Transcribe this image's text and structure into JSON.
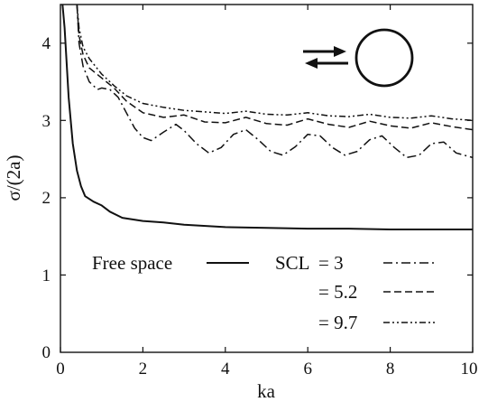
{
  "chart_data": {
    "type": "line",
    "title": "",
    "xlabel": "ka",
    "ylabel": "σ/(2a)",
    "xlim": [
      0,
      10
    ],
    "ylim": [
      0,
      4.5
    ],
    "xticks": [
      "0",
      "2",
      "4",
      "6",
      "8",
      "10"
    ],
    "yticks": [
      "0",
      "1",
      "2",
      "3",
      "4"
    ],
    "grid": false,
    "legend_placement": "bottom",
    "inset_icon": "scattering-cylinder-with-incident-and-reflected-arrows-icon",
    "legend": {
      "free_space": "Free space",
      "scl_prefix": "SCL",
      "scl_3": "= 3",
      "scl_5_2": "= 5.2",
      "scl_9_7": "= 9.7"
    },
    "series": [
      {
        "name": "Free space",
        "dash": "solid",
        "x": [
          0.05,
          0.1,
          0.2,
          0.3,
          0.4,
          0.5,
          0.6,
          0.8,
          1.0,
          1.2,
          1.5,
          2.0,
          2.5,
          3.0,
          4.0,
          5.0,
          6.0,
          7.0,
          8.0,
          9.0,
          10.0
        ],
        "y": [
          4.5,
          4.2,
          3.3,
          2.7,
          2.35,
          2.15,
          2.02,
          1.95,
          1.9,
          1.82,
          1.74,
          1.7,
          1.68,
          1.65,
          1.62,
          1.61,
          1.6,
          1.6,
          1.59,
          1.59,
          1.59
        ]
      },
      {
        "name": "SCL = 3",
        "dash": "dashdot",
        "x": [
          0.4,
          0.45,
          0.55,
          0.7,
          0.9,
          1.0,
          1.2,
          1.4,
          1.6,
          1.8,
          2.0,
          2.2,
          2.5,
          2.8,
          3.0,
          3.3,
          3.6,
          3.9,
          4.2,
          4.5,
          4.8,
          5.1,
          5.4,
          5.7,
          6.0,
          6.3,
          6.6,
          6.9,
          7.2,
          7.5,
          7.8,
          8.1,
          8.4,
          8.7,
          9.0,
          9.3,
          9.6,
          10.0
        ],
        "y": [
          4.5,
          4.0,
          3.7,
          3.5,
          3.4,
          3.42,
          3.4,
          3.3,
          3.1,
          2.9,
          2.78,
          2.74,
          2.85,
          2.95,
          2.87,
          2.7,
          2.58,
          2.65,
          2.82,
          2.88,
          2.75,
          2.6,
          2.55,
          2.66,
          2.82,
          2.8,
          2.65,
          2.55,
          2.6,
          2.75,
          2.8,
          2.65,
          2.52,
          2.55,
          2.7,
          2.72,
          2.58,
          2.52
        ]
      },
      {
        "name": "SCL = 5.2",
        "dash": "dashed",
        "x": [
          0.4,
          0.45,
          0.55,
          0.7,
          1.0,
          1.3,
          1.6,
          2.0,
          2.5,
          3.0,
          3.5,
          4.0,
          4.5,
          5.0,
          5.5,
          6.0,
          6.5,
          7.0,
          7.5,
          8.0,
          8.5,
          9.0,
          9.5,
          10.0
        ],
        "y": [
          4.5,
          4.1,
          3.85,
          3.68,
          3.55,
          3.42,
          3.25,
          3.1,
          3.04,
          3.07,
          2.98,
          2.97,
          3.04,
          2.96,
          2.94,
          3.02,
          2.95,
          2.91,
          2.99,
          2.93,
          2.9,
          2.97,
          2.92,
          2.88
        ]
      },
      {
        "name": "SCL = 9.7",
        "dash": "dashdotdot",
        "x": [
          0.4,
          0.45,
          0.55,
          0.7,
          1.0,
          1.3,
          1.6,
          2.0,
          2.5,
          3.0,
          3.5,
          4.0,
          4.5,
          5.0,
          5.5,
          6.0,
          6.5,
          7.0,
          7.5,
          8.0,
          8.5,
          9.0,
          9.5,
          10.0
        ],
        "y": [
          4.5,
          4.2,
          3.95,
          3.8,
          3.6,
          3.45,
          3.32,
          3.22,
          3.17,
          3.13,
          3.11,
          3.09,
          3.12,
          3.08,
          3.07,
          3.1,
          3.06,
          3.05,
          3.08,
          3.04,
          3.03,
          3.06,
          3.02,
          3.0
        ]
      }
    ]
  }
}
